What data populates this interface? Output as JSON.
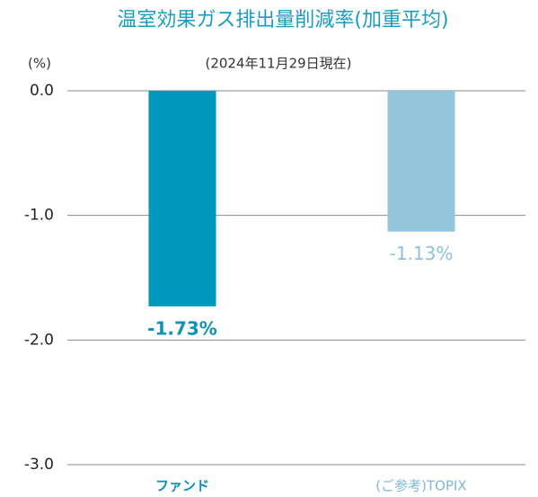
{
  "chart_data": {
    "type": "bar",
    "title": "温室効果ガス排出量削減率(加重平均)",
    "subtitle": "(2024年11月29日現在)",
    "y_axis_label": "(%)",
    "categories": [
      "ファンド",
      "(ご参考)TOPIX"
    ],
    "values": [
      -1.73,
      -1.13
    ],
    "value_labels": [
      "-1.73%",
      "-1.13%"
    ],
    "colors": [
      "#0097bd",
      "#93c6dc"
    ],
    "ylim": [
      -3.0,
      0.0
    ],
    "yticks": [
      {
        "value": 0,
        "label": "0.0"
      },
      {
        "value": -1,
        "label": "-1.0"
      },
      {
        "value": -2,
        "label": "-2.0"
      },
      {
        "value": -3,
        "label": "-3.0"
      }
    ],
    "grid": true
  }
}
